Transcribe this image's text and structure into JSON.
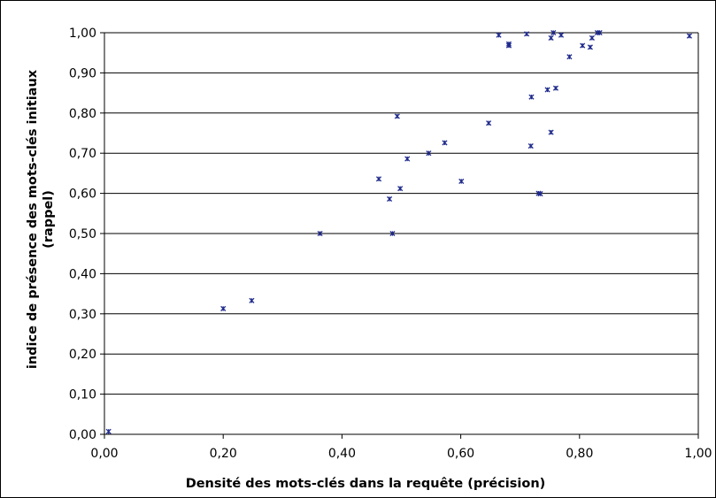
{
  "chart_data": {
    "type": "scatter",
    "xlabel": "Densité des mots-clés dans la requête (précision)",
    "ylabel_line1": "indice de présence des mots-clés initiaux",
    "ylabel_line2": "(rappel)",
    "xlim": [
      0,
      1
    ],
    "ylim": [
      0,
      1
    ],
    "x_ticks": [
      0,
      0.2,
      0.4,
      0.6,
      0.8,
      1.0
    ],
    "x_tick_labels": [
      "0,00",
      "0,20",
      "0,40",
      "0,60",
      "0,80",
      "1,00"
    ],
    "y_ticks": [
      0,
      0.1,
      0.2,
      0.3,
      0.4,
      0.5,
      0.6,
      0.7,
      0.8,
      0.9,
      1.0
    ],
    "y_tick_labels": [
      "0,00",
      "0,10",
      "0,20",
      "0,30",
      "0,40",
      "0,50",
      "0,60",
      "0,70",
      "0,80",
      "0,90",
      "1,00"
    ],
    "grid": "horizontal",
    "legend": "none",
    "marker_color": "#1f2a8c",
    "series": [
      {
        "points": [
          [
            0.007,
            0.007
          ],
          [
            0.2,
            0.313
          ],
          [
            0.248,
            0.333
          ],
          [
            0.363,
            0.5
          ],
          [
            0.462,
            0.636
          ],
          [
            0.48,
            0.586
          ],
          [
            0.485,
            0.5
          ],
          [
            0.493,
            0.792
          ],
          [
            0.498,
            0.612
          ],
          [
            0.51,
            0.686
          ],
          [
            0.546,
            0.7
          ],
          [
            0.573,
            0.726
          ],
          [
            0.601,
            0.63
          ],
          [
            0.647,
            0.775
          ],
          [
            0.664,
            0.994
          ],
          [
            0.681,
            0.972
          ],
          [
            0.681,
            0.968
          ],
          [
            0.711,
            0.997
          ],
          [
            0.718,
            0.718
          ],
          [
            0.719,
            0.84
          ],
          [
            0.731,
            0.6
          ],
          [
            0.734,
            0.599
          ],
          [
            0.746,
            0.858
          ],
          [
            0.752,
            0.752
          ],
          [
            0.752,
            0.987
          ],
          [
            0.756,
            1.0
          ],
          [
            0.76,
            0.862
          ],
          [
            0.769,
            0.994
          ],
          [
            0.783,
            0.94
          ],
          [
            0.805,
            0.968
          ],
          [
            0.818,
            0.964
          ],
          [
            0.821,
            0.987
          ],
          [
            0.83,
            1.0
          ],
          [
            0.834,
            1.0
          ],
          [
            0.985,
            0.992
          ]
        ]
      }
    ]
  }
}
